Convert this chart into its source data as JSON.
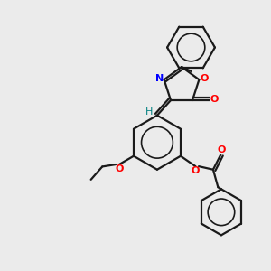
{
  "bg_color": "#ebebeb",
  "bond_color": "#1a1a1a",
  "N_color": "#0000ff",
  "O_color": "#ff0000",
  "H_color": "#008080",
  "figsize": [
    3.0,
    3.0
  ],
  "dpi": 100,
  "xlim": [
    0,
    10
  ],
  "ylim": [
    0,
    10
  ]
}
